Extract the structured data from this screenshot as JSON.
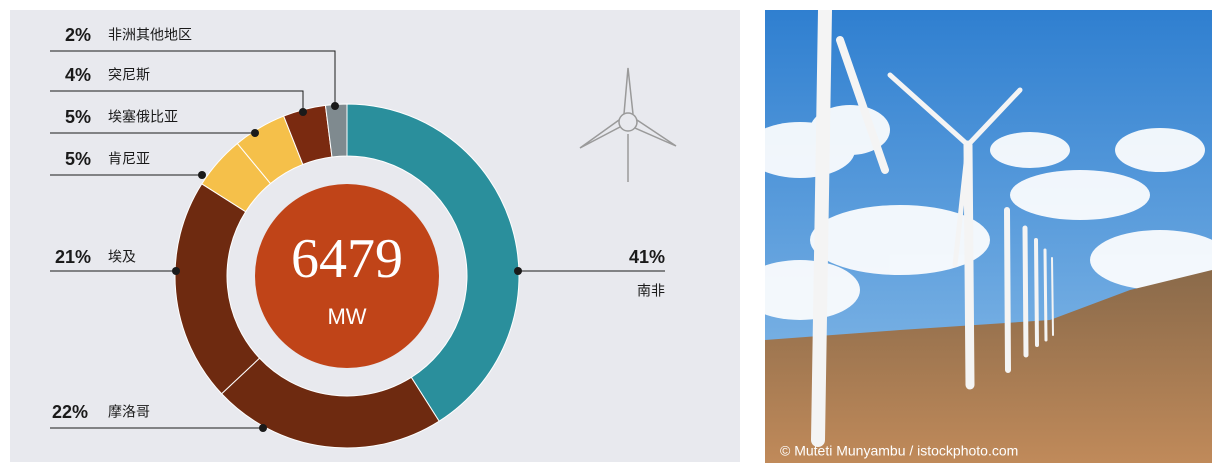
{
  "chart_data": {
    "type": "donut",
    "center_value": 6479,
    "center_unit": "MW",
    "categories": [
      "南非",
      "摩洛哥",
      "埃及",
      "肯尼亚",
      "埃塞俄比亚",
      "突尼斯",
      "非洲其他地区"
    ],
    "values": [
      41,
      22,
      21,
      5,
      5,
      4,
      2
    ],
    "value_labels": [
      "41%",
      "22%",
      "21%",
      "5%",
      "5%",
      "4%",
      "2%"
    ],
    "colors": [
      "#2a8f9c",
      "#6e2a10",
      "#6e2a10",
      "#f5c04a",
      "#f5c04a",
      "#7a2a10",
      "#7f8a8f"
    ]
  },
  "photo": {
    "credit": "© Muteti Munyambu / istockphoto.com"
  }
}
